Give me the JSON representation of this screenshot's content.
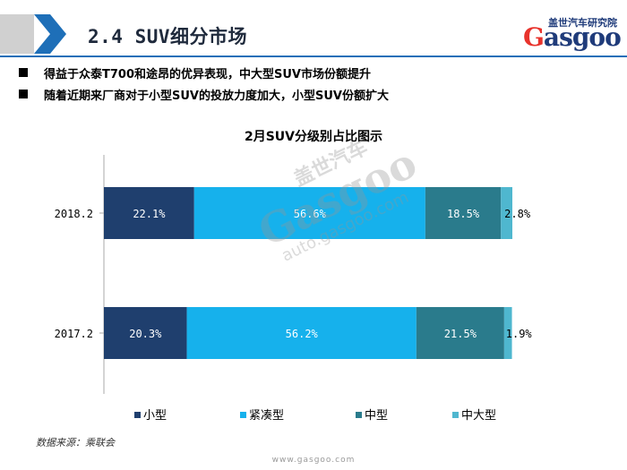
{
  "header": {
    "title": "2.4 SUV细分市场",
    "logo_cn": "盖世汽车研究院",
    "logo_en_g": "G",
    "logo_en_rest": "asgoo"
  },
  "bullets": [
    "得益于众泰T700和途昂的优异表现，中大型SUV市场份额提升",
    "随着近期来厂商对于小型SUV的投放力度加大，小型SUV份额扩大"
  ],
  "watermark": {
    "cn": "盖世汽车",
    "en": "Gasgoo",
    "url": "auto.gasgoo.com"
  },
  "chart_data": {
    "type": "bar",
    "orientation": "horizontal",
    "stacked": true,
    "percent_stacked": true,
    "title": "2月SUV分级别占比图示",
    "categories": [
      "2018.2",
      "2017.2"
    ],
    "series": [
      {
        "name": "小型",
        "color": "#1f3f6e",
        "values": [
          22.1,
          20.3
        ],
        "labels": [
          "22.1%",
          "20.3%"
        ]
      },
      {
        "name": "紧凑型",
        "color": "#16b1ec",
        "values": [
          56.6,
          56.2
        ],
        "labels": [
          "56.6%",
          "56.2%"
        ]
      },
      {
        "name": "中型",
        "color": "#2a7b8c",
        "values": [
          18.5,
          21.5
        ],
        "labels": [
          "18.5%",
          "21.5%"
        ]
      },
      {
        "name": "中大型",
        "color": "#4fb7cf",
        "values": [
          2.8,
          1.9
        ],
        "labels": [
          "2.8%",
          "1.9%"
        ]
      }
    ],
    "xlim": [
      0,
      100
    ],
    "legend": "bottom",
    "grid": false
  },
  "source": "数据来源：乘联会",
  "footer_url": "www.gasgoo.com"
}
